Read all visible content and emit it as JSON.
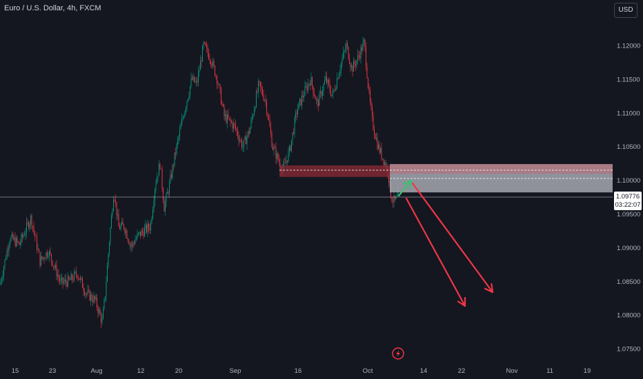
{
  "header": {
    "symbol_title": "Euro / U.S. Dollar, 4h, FXCM",
    "currency_button": "USD"
  },
  "price_tag": {
    "last_price": "1.09776",
    "countdown": "03:22:07"
  },
  "colors": {
    "background": "#141720",
    "up": "#089981",
    "down": "#f23645",
    "zone_red": "#8c2b36",
    "zone_grey": "#b2b5be",
    "arrow_red": "#f23645",
    "arrow_green": "#3ebf74"
  },
  "chart_data": {
    "type": "candlestick",
    "title": "Euro / U.S. Dollar, 4h, FXCM",
    "ylim": [
      1.0725,
      1.1255
    ],
    "y_ticks": [
      "1.12000",
      "1.11500",
      "1.11000",
      "1.10500",
      "1.10000",
      "1.09500",
      "1.09000",
      "1.08500",
      "1.08000",
      "1.07500"
    ],
    "x_ticks": [
      "15",
      "23",
      "Aug",
      "12",
      "20",
      "Sep",
      "16",
      "Oct",
      "14",
      "22",
      "Nov",
      "11",
      "19"
    ],
    "last_price": 1.09776,
    "path": [
      [
        0,
        1.0845
      ],
      [
        14,
        1.0915
      ],
      [
        28,
        1.0905
      ],
      [
        45,
        1.0945
      ],
      [
        58,
        1.088
      ],
      [
        70,
        1.0895
      ],
      [
        88,
        1.0848
      ],
      [
        100,
        1.085
      ],
      [
        112,
        1.0862
      ],
      [
        125,
        1.0832
      ],
      [
        138,
        1.0822
      ],
      [
        148,
        1.079
      ],
      [
        152,
        1.0825
      ],
      [
        158,
        1.0905
      ],
      [
        165,
        1.0985
      ],
      [
        172,
        1.093
      ],
      [
        180,
        1.0932
      ],
      [
        190,
        1.0902
      ],
      [
        200,
        1.0918
      ],
      [
        218,
        1.0932
      ],
      [
        225,
        1.0995
      ],
      [
        232,
        1.1025
      ],
      [
        238,
        1.096
      ],
      [
        246,
        1.0995
      ],
      [
        255,
        1.1045
      ],
      [
        266,
        1.1098
      ],
      [
        278,
        1.115
      ],
      [
        285,
        1.1142
      ],
      [
        295,
        1.12
      ],
      [
        305,
        1.1182
      ],
      [
        315,
        1.115
      ],
      [
        325,
        1.1095
      ],
      [
        340,
        1.108
      ],
      [
        352,
        1.105
      ],
      [
        362,
        1.1075
      ],
      [
        375,
        1.1142
      ],
      [
        385,
        1.1118
      ],
      [
        395,
        1.105
      ],
      [
        410,
        1.1015
      ],
      [
        420,
        1.1045
      ],
      [
        430,
        1.1102
      ],
      [
        440,
        1.1128
      ],
      [
        450,
        1.115
      ],
      [
        460,
        1.1112
      ],
      [
        472,
        1.115
      ],
      [
        482,
        1.1125
      ],
      [
        492,
        1.1165
      ],
      [
        502,
        1.12
      ],
      [
        510,
        1.1165
      ],
      [
        518,
        1.118
      ],
      [
        528,
        1.1205
      ],
      [
        535,
        1.1125
      ],
      [
        540,
        1.1085
      ],
      [
        548,
        1.105
      ],
      [
        556,
        1.103
      ],
      [
        562,
        1.1015
      ],
      [
        567,
        1.0975
      ],
      [
        572,
        1.0968
      ],
      [
        580,
        1.098
      ]
    ],
    "zones": [
      {
        "name": "red-zone",
        "x_from": "Sep 12",
        "x_to": "Oct 3",
        "y_from": 1.1005,
        "y_to": 1.1022
      },
      {
        "name": "grey-zone",
        "x_from": "Oct 3",
        "x_to": "Nov 30",
        "y_from": 1.0982,
        "y_to": 1.1024
      }
    ],
    "arrows": [
      {
        "color": "green",
        "from": [
          1.0965
        ],
        "to": [
          1.1005
        ]
      },
      {
        "color": "red",
        "from": [
          1.1002
        ],
        "to": [
          1.0815
        ]
      },
      {
        "color": "red",
        "from": [
          1.1005
        ],
        "to": [
          1.0838
        ]
      }
    ]
  }
}
